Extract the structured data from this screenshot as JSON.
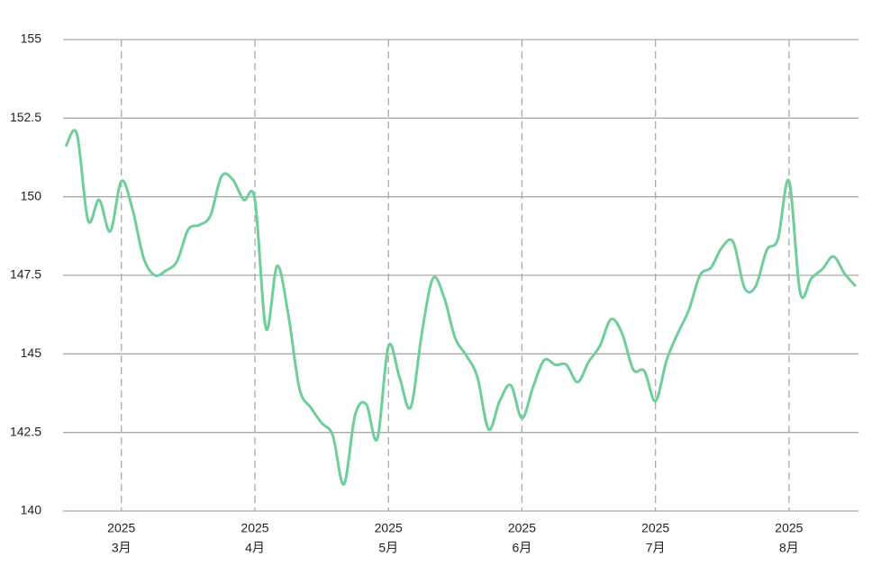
{
  "chart_data": {
    "type": "line",
    "categories": [
      null,
      null,
      null,
      null,
      null,
      [
        "2025",
        "3月"
      ],
      null,
      null,
      null,
      null,
      null,
      null,
      null,
      null,
      null,
      null,
      null,
      [
        "2025",
        "4月"
      ],
      null,
      null,
      null,
      null,
      null,
      null,
      null,
      null,
      null,
      null,
      null,
      [
        "2025",
        "5月"
      ],
      null,
      null,
      null,
      null,
      null,
      null,
      null,
      null,
      null,
      null,
      null,
      [
        "2025",
        "6月"
      ],
      null,
      null,
      null,
      null,
      null,
      null,
      null,
      null,
      null,
      null,
      null,
      [
        "2025",
        "7月"
      ],
      null,
      null,
      null,
      null,
      null,
      null,
      null,
      null,
      null,
      null,
      null,
      [
        "2025",
        "8月"
      ],
      null,
      null,
      null,
      null,
      null,
      null
    ],
    "series": [
      {
        "color": "#6fce99",
        "values": [
          151.6,
          152.0,
          149.25,
          149.9,
          148.9,
          150.5,
          149.6,
          148.05,
          147.5,
          147.65,
          147.95,
          148.95,
          149.1,
          149.4,
          150.65,
          150.55,
          149.9,
          149.9,
          145.8,
          147.8,
          146.25,
          143.9,
          143.3,
          142.8,
          142.4,
          140.85,
          143.05,
          143.4,
          142.3,
          145.25,
          144.25,
          143.3,
          145.65,
          147.4,
          146.8,
          145.5,
          144.95,
          144.25,
          142.6,
          143.5,
          144.0,
          142.95,
          143.95,
          144.8,
          144.65,
          144.65,
          144.1,
          144.75,
          145.25,
          146.1,
          145.65,
          144.5,
          144.45,
          143.5,
          144.8,
          145.65,
          146.4,
          147.5,
          147.75,
          148.4,
          148.55,
          147.1,
          147.15,
          148.3,
          148.65,
          150.5,
          146.95,
          147.4,
          147.7,
          148.1,
          147.55,
          147.15
        ]
      }
    ],
    "ylim": [
      140,
      155
    ],
    "yticks": [
      140,
      142.5,
      145,
      147.5,
      150,
      152.5,
      155
    ],
    "grid": true
  }
}
